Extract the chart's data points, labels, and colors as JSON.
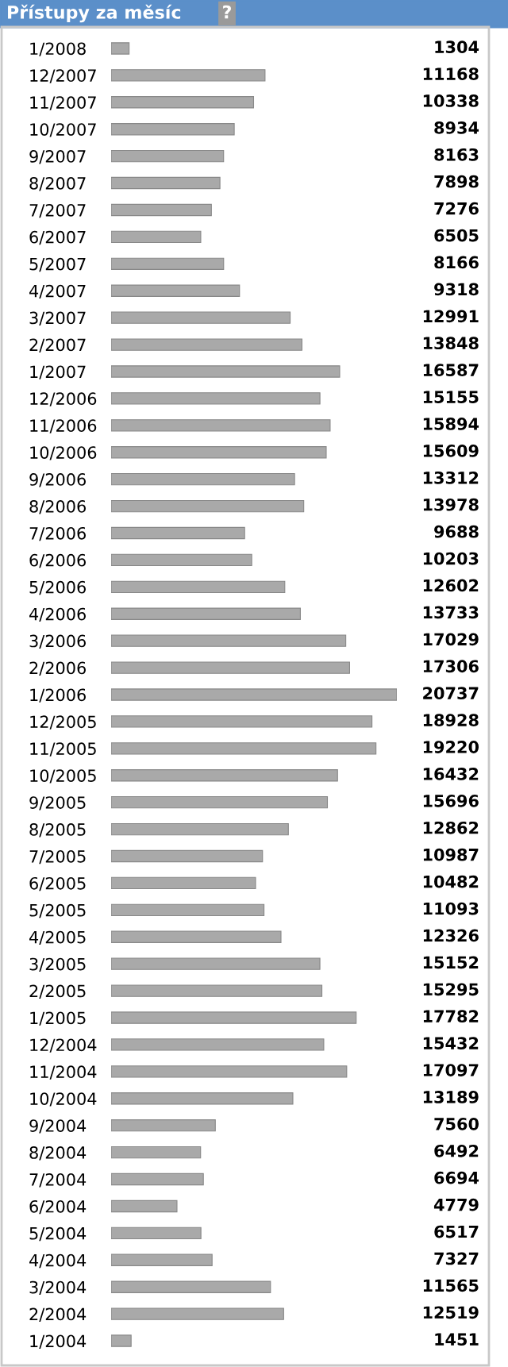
{
  "chart_data": {
    "type": "bar",
    "orientation": "horizontal",
    "title": "Přístupy za měsíc",
    "annotations": [
      "?"
    ],
    "categories": [
      "1/2008",
      "12/2007",
      "11/2007",
      "10/2007",
      "9/2007",
      "8/2007",
      "7/2007",
      "6/2007",
      "5/2007",
      "4/2007",
      "3/2007",
      "2/2007",
      "1/2007",
      "12/2006",
      "11/2006",
      "10/2006",
      "9/2006",
      "8/2006",
      "7/2006",
      "6/2006",
      "5/2006",
      "4/2006",
      "3/2006",
      "2/2006",
      "1/2006",
      "12/2005",
      "11/2005",
      "10/2005",
      "9/2005",
      "8/2005",
      "7/2005",
      "6/2005",
      "5/2005",
      "4/2005",
      "3/2005",
      "2/2005",
      "1/2005",
      "12/2004",
      "11/2004",
      "10/2004",
      "9/2004",
      "8/2004",
      "7/2004",
      "6/2004",
      "5/2004",
      "4/2004",
      "3/2004",
      "2/2004",
      "1/2004"
    ],
    "values": [
      1304,
      11168,
      10338,
      8934,
      8163,
      7898,
      7276,
      6505,
      8166,
      9318,
      12991,
      13848,
      16587,
      15155,
      15894,
      15609,
      13312,
      13978,
      9688,
      10203,
      12602,
      13733,
      17029,
      17306,
      20737,
      18928,
      19220,
      16432,
      15696,
      12862,
      10987,
      10482,
      11093,
      12326,
      15152,
      15295,
      17782,
      15432,
      17097,
      13189,
      7560,
      6492,
      6694,
      4779,
      6517,
      7327,
      11565,
      12519,
      1451
    ],
    "color": "#a9a9a9",
    "data_labels": true,
    "tick_labels": "y",
    "grid": false,
    "legend": false
  }
}
